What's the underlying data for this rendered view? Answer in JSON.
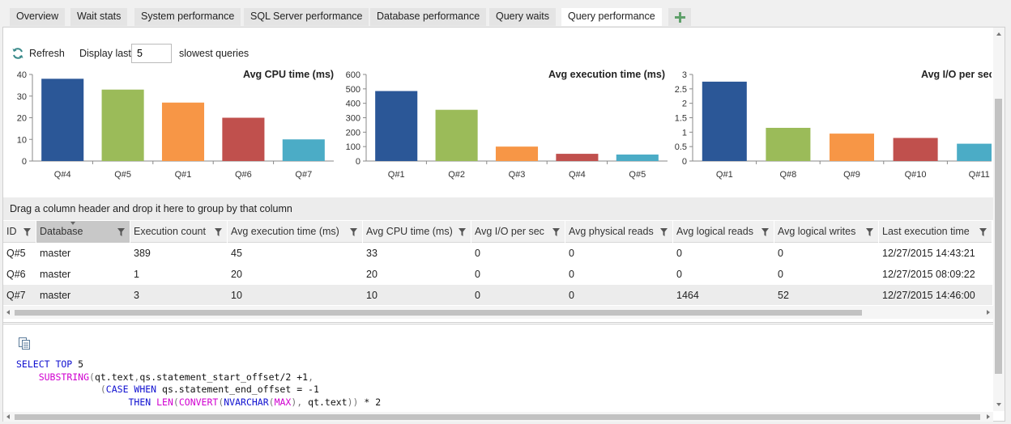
{
  "tabs": [
    {
      "label": "Overview",
      "active": false
    },
    {
      "label": "Wait stats",
      "active": false
    },
    {
      "label": "System performance",
      "active": false
    },
    {
      "label": "SQL Server performance",
      "active": false
    },
    {
      "label": "Database performance",
      "active": false
    },
    {
      "label": "Query waits",
      "active": false
    },
    {
      "label": "Query performance",
      "active": true
    }
  ],
  "toolbar": {
    "refresh_label": "Refresh",
    "display_label": "Display last",
    "display_value": "5",
    "slowest_label": "slowest queries"
  },
  "chart_data": [
    {
      "type": "bar",
      "title": "Avg CPU time (ms)",
      "categories": [
        "Q#4",
        "Q#5",
        "Q#1",
        "Q#6",
        "Q#7"
      ],
      "values": [
        38,
        33,
        27,
        20,
        10
      ],
      "ylim": [
        0,
        40
      ],
      "yticks": [
        "0",
        "10",
        "20",
        "30",
        "40"
      ],
      "colors": [
        "#2b5797",
        "#9bbb59",
        "#f79646",
        "#c0504d",
        "#4bacc6"
      ]
    },
    {
      "type": "bar",
      "title": "Avg execution time (ms)",
      "categories": [
        "Q#1",
        "Q#2",
        "Q#3",
        "Q#4",
        "Q#5"
      ],
      "values": [
        485,
        355,
        100,
        50,
        45
      ],
      "ylim": [
        0,
        600
      ],
      "yticks": [
        "0",
        "100",
        "200",
        "300",
        "400",
        "500",
        "600"
      ],
      "colors": [
        "#2b5797",
        "#9bbb59",
        "#f79646",
        "#c0504d",
        "#4bacc6"
      ]
    },
    {
      "type": "bar",
      "title": "Avg I/O per sec",
      "categories": [
        "Q#1",
        "Q#8",
        "Q#9",
        "Q#10",
        "Q#11"
      ],
      "values": [
        2.75,
        1.15,
        0.95,
        0.8,
        0.6
      ],
      "ylim": [
        0,
        3
      ],
      "yticks": [
        "0",
        "0.5",
        "1",
        "1.5",
        "2",
        "2.5",
        "3"
      ],
      "colors": [
        "#2b5797",
        "#9bbb59",
        "#f79646",
        "#c0504d",
        "#4bacc6"
      ]
    }
  ],
  "group_panel_text": "Drag a column header and drop it here to group by that column",
  "grid": {
    "columns": [
      "ID",
      "Database",
      "Execution count",
      "Avg execution time (ms)",
      "Avg CPU time (ms)",
      "Avg I/O per sec",
      "Avg physical reads",
      "Avg logical reads",
      "Avg logical writes",
      "Last execution time"
    ],
    "rows": [
      [
        "Q#5",
        "master",
        "389",
        "45",
        "33",
        "0",
        "0",
        "0",
        "0",
        "12/27/2015 14:43:21"
      ],
      [
        "Q#6",
        "master",
        "1",
        "20",
        "20",
        "0",
        "0",
        "0",
        "0",
        "12/27/2015 08:09:22"
      ],
      [
        "Q#7",
        "master",
        "3",
        "10",
        "10",
        "0",
        "0",
        "1464",
        "52",
        "12/27/2015 14:46:00"
      ]
    ]
  },
  "sql": {
    "lines": [
      [
        {
          "t": "kw",
          "v": "SELECT TOP"
        },
        {
          "t": "tx",
          "v": " 5"
        }
      ],
      [
        {
          "t": "tx",
          "v": "    "
        },
        {
          "t": "fn",
          "v": "SUBSTRING"
        },
        {
          "t": "op",
          "v": "("
        },
        {
          "t": "tx",
          "v": "qt.text"
        },
        {
          "t": "op",
          "v": ","
        },
        {
          "t": "tx",
          "v": "qs.statement_start_offset/2 +1"
        },
        {
          "t": "op",
          "v": ","
        }
      ],
      [
        {
          "t": "tx",
          "v": "               "
        },
        {
          "t": "op",
          "v": "("
        },
        {
          "t": "kw",
          "v": "CASE WHEN"
        },
        {
          "t": "tx",
          "v": " qs.statement_end_offset = -1"
        }
      ],
      [
        {
          "t": "tx",
          "v": "                    "
        },
        {
          "t": "kw",
          "v": "THEN"
        },
        {
          "t": "tx",
          "v": " "
        },
        {
          "t": "fn",
          "v": "LEN"
        },
        {
          "t": "op",
          "v": "("
        },
        {
          "t": "fn",
          "v": "CONVERT"
        },
        {
          "t": "op",
          "v": "("
        },
        {
          "t": "kw",
          "v": "NVARCHAR"
        },
        {
          "t": "op",
          "v": "("
        },
        {
          "t": "fn",
          "v": "MAX"
        },
        {
          "t": "op",
          "v": "),"
        },
        {
          "t": "tx",
          "v": " qt.text"
        },
        {
          "t": "op",
          "v": "))"
        },
        {
          "t": "tx",
          "v": " * 2"
        }
      ]
    ]
  },
  "icons": {
    "refresh": "refresh-icon",
    "filter": "filter-icon",
    "copy": "copy-icon",
    "add_tab": "plus-icon"
  }
}
